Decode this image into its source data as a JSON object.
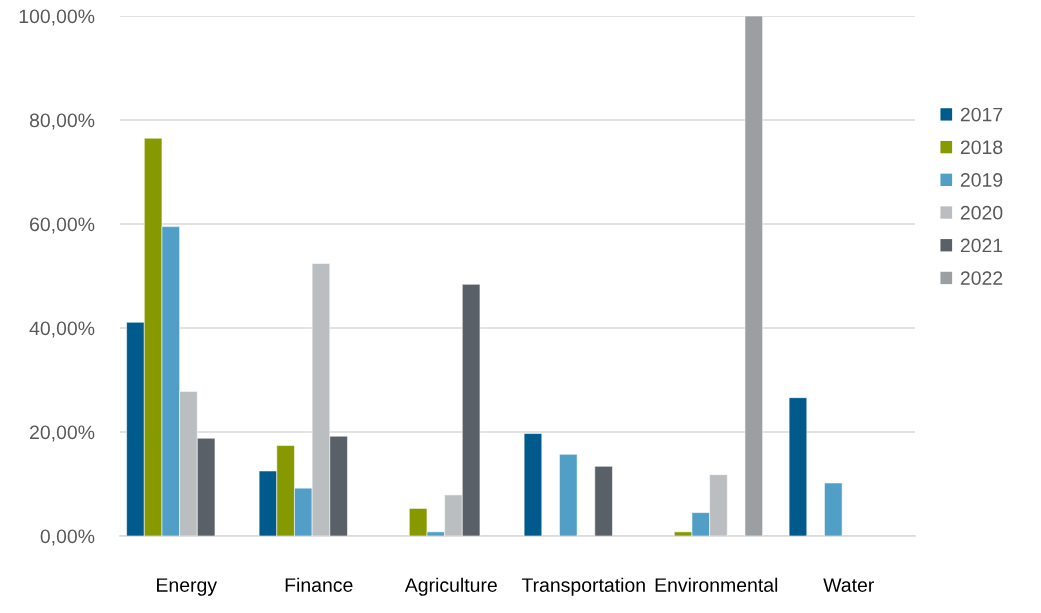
{
  "chart_data": {
    "type": "bar",
    "categories": [
      "Energy",
      "Finance",
      "Agriculture",
      "Transportation",
      "Environmental",
      "Water"
    ],
    "series": [
      {
        "name": "2017",
        "color": "#005a8c",
        "values": [
          41.1,
          12.5,
          null,
          19.7,
          null,
          26.6
        ]
      },
      {
        "name": "2018",
        "color": "#869a00",
        "values": [
          76.5,
          17.4,
          5.3,
          null,
          0.8,
          null
        ]
      },
      {
        "name": "2019",
        "color": "#519fc6",
        "values": [
          59.5,
          9.2,
          0.8,
          15.7,
          4.5,
          10.2
        ]
      },
      {
        "name": "2020",
        "color": "#bbbec1",
        "values": [
          27.8,
          52.4,
          7.9,
          null,
          11.8,
          null
        ]
      },
      {
        "name": "2021",
        "color": "#5a6067",
        "values": [
          18.8,
          19.2,
          48.4,
          13.4,
          null,
          null
        ]
      },
      {
        "name": "2022",
        "color": "#9c9fa2",
        "values": [
          null,
          null,
          null,
          null,
          100,
          null
        ]
      }
    ],
    "ylim": [
      0,
      100
    ],
    "yticks": [
      {
        "value": 0,
        "label": "0,00%"
      },
      {
        "value": 20,
        "label": "20,00%"
      },
      {
        "value": 40,
        "label": "40,00%"
      },
      {
        "value": 60,
        "label": "60,00%"
      },
      {
        "value": 80,
        "label": "80,00%"
      },
      {
        "value": 100,
        "label": "100,00%"
      }
    ],
    "grid": "y",
    "legend": "right"
  }
}
